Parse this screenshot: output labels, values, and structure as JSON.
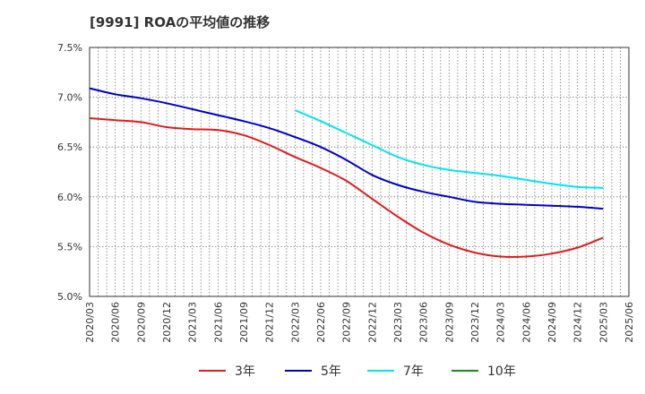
{
  "chart_data": {
    "type": "line",
    "title": "[9991]  ROAの平均値の推移",
    "xlabel": "",
    "ylabel": "",
    "ylim": [
      5.0,
      7.5
    ],
    "yticks": [
      "5.0%",
      "5.5%",
      "6.0%",
      "6.5%",
      "7.0%",
      "7.5%"
    ],
    "ytick_values": [
      5.0,
      5.5,
      6.0,
      6.5,
      7.0,
      7.5
    ],
    "x": [
      "2020/03",
      "2020/06",
      "2020/09",
      "2020/12",
      "2021/03",
      "2021/06",
      "2021/09",
      "2021/12",
      "2022/03",
      "2022/06",
      "2022/09",
      "2022/12",
      "2023/03",
      "2023/06",
      "2023/09",
      "2023/12",
      "2024/03",
      "2024/06",
      "2024/09",
      "2024/12",
      "2025/03",
      "2025/06"
    ],
    "grid": true,
    "legend_position": "bottom",
    "series": [
      {
        "name": "3年",
        "color": "#e31a1c",
        "values": [
          6.79,
          6.77,
          6.75,
          6.7,
          6.68,
          6.67,
          6.62,
          6.52,
          6.4,
          6.29,
          6.16,
          5.98,
          5.8,
          5.64,
          5.52,
          5.44,
          5.4,
          5.4,
          5.43,
          5.49,
          5.59,
          null
        ]
      },
      {
        "name": "5年",
        "color": "#0000cc",
        "values": [
          7.09,
          7.03,
          6.99,
          6.94,
          6.88,
          6.82,
          6.76,
          6.69,
          6.6,
          6.5,
          6.37,
          6.22,
          6.12,
          6.05,
          6.0,
          5.95,
          5.93,
          5.92,
          5.91,
          5.9,
          5.88,
          null
        ]
      },
      {
        "name": "7年",
        "color": "#00e5ee",
        "values": [
          null,
          null,
          null,
          null,
          null,
          null,
          null,
          null,
          6.87,
          6.76,
          6.64,
          6.52,
          6.4,
          6.32,
          6.27,
          6.24,
          6.21,
          6.17,
          6.13,
          6.1,
          6.09,
          null
        ]
      },
      {
        "name": "10年",
        "color": "#1a8a1a",
        "values": [
          null,
          null,
          null,
          null,
          null,
          null,
          null,
          null,
          null,
          null,
          null,
          null,
          null,
          null,
          null,
          null,
          null,
          null,
          null,
          null,
          null,
          null
        ]
      }
    ]
  }
}
